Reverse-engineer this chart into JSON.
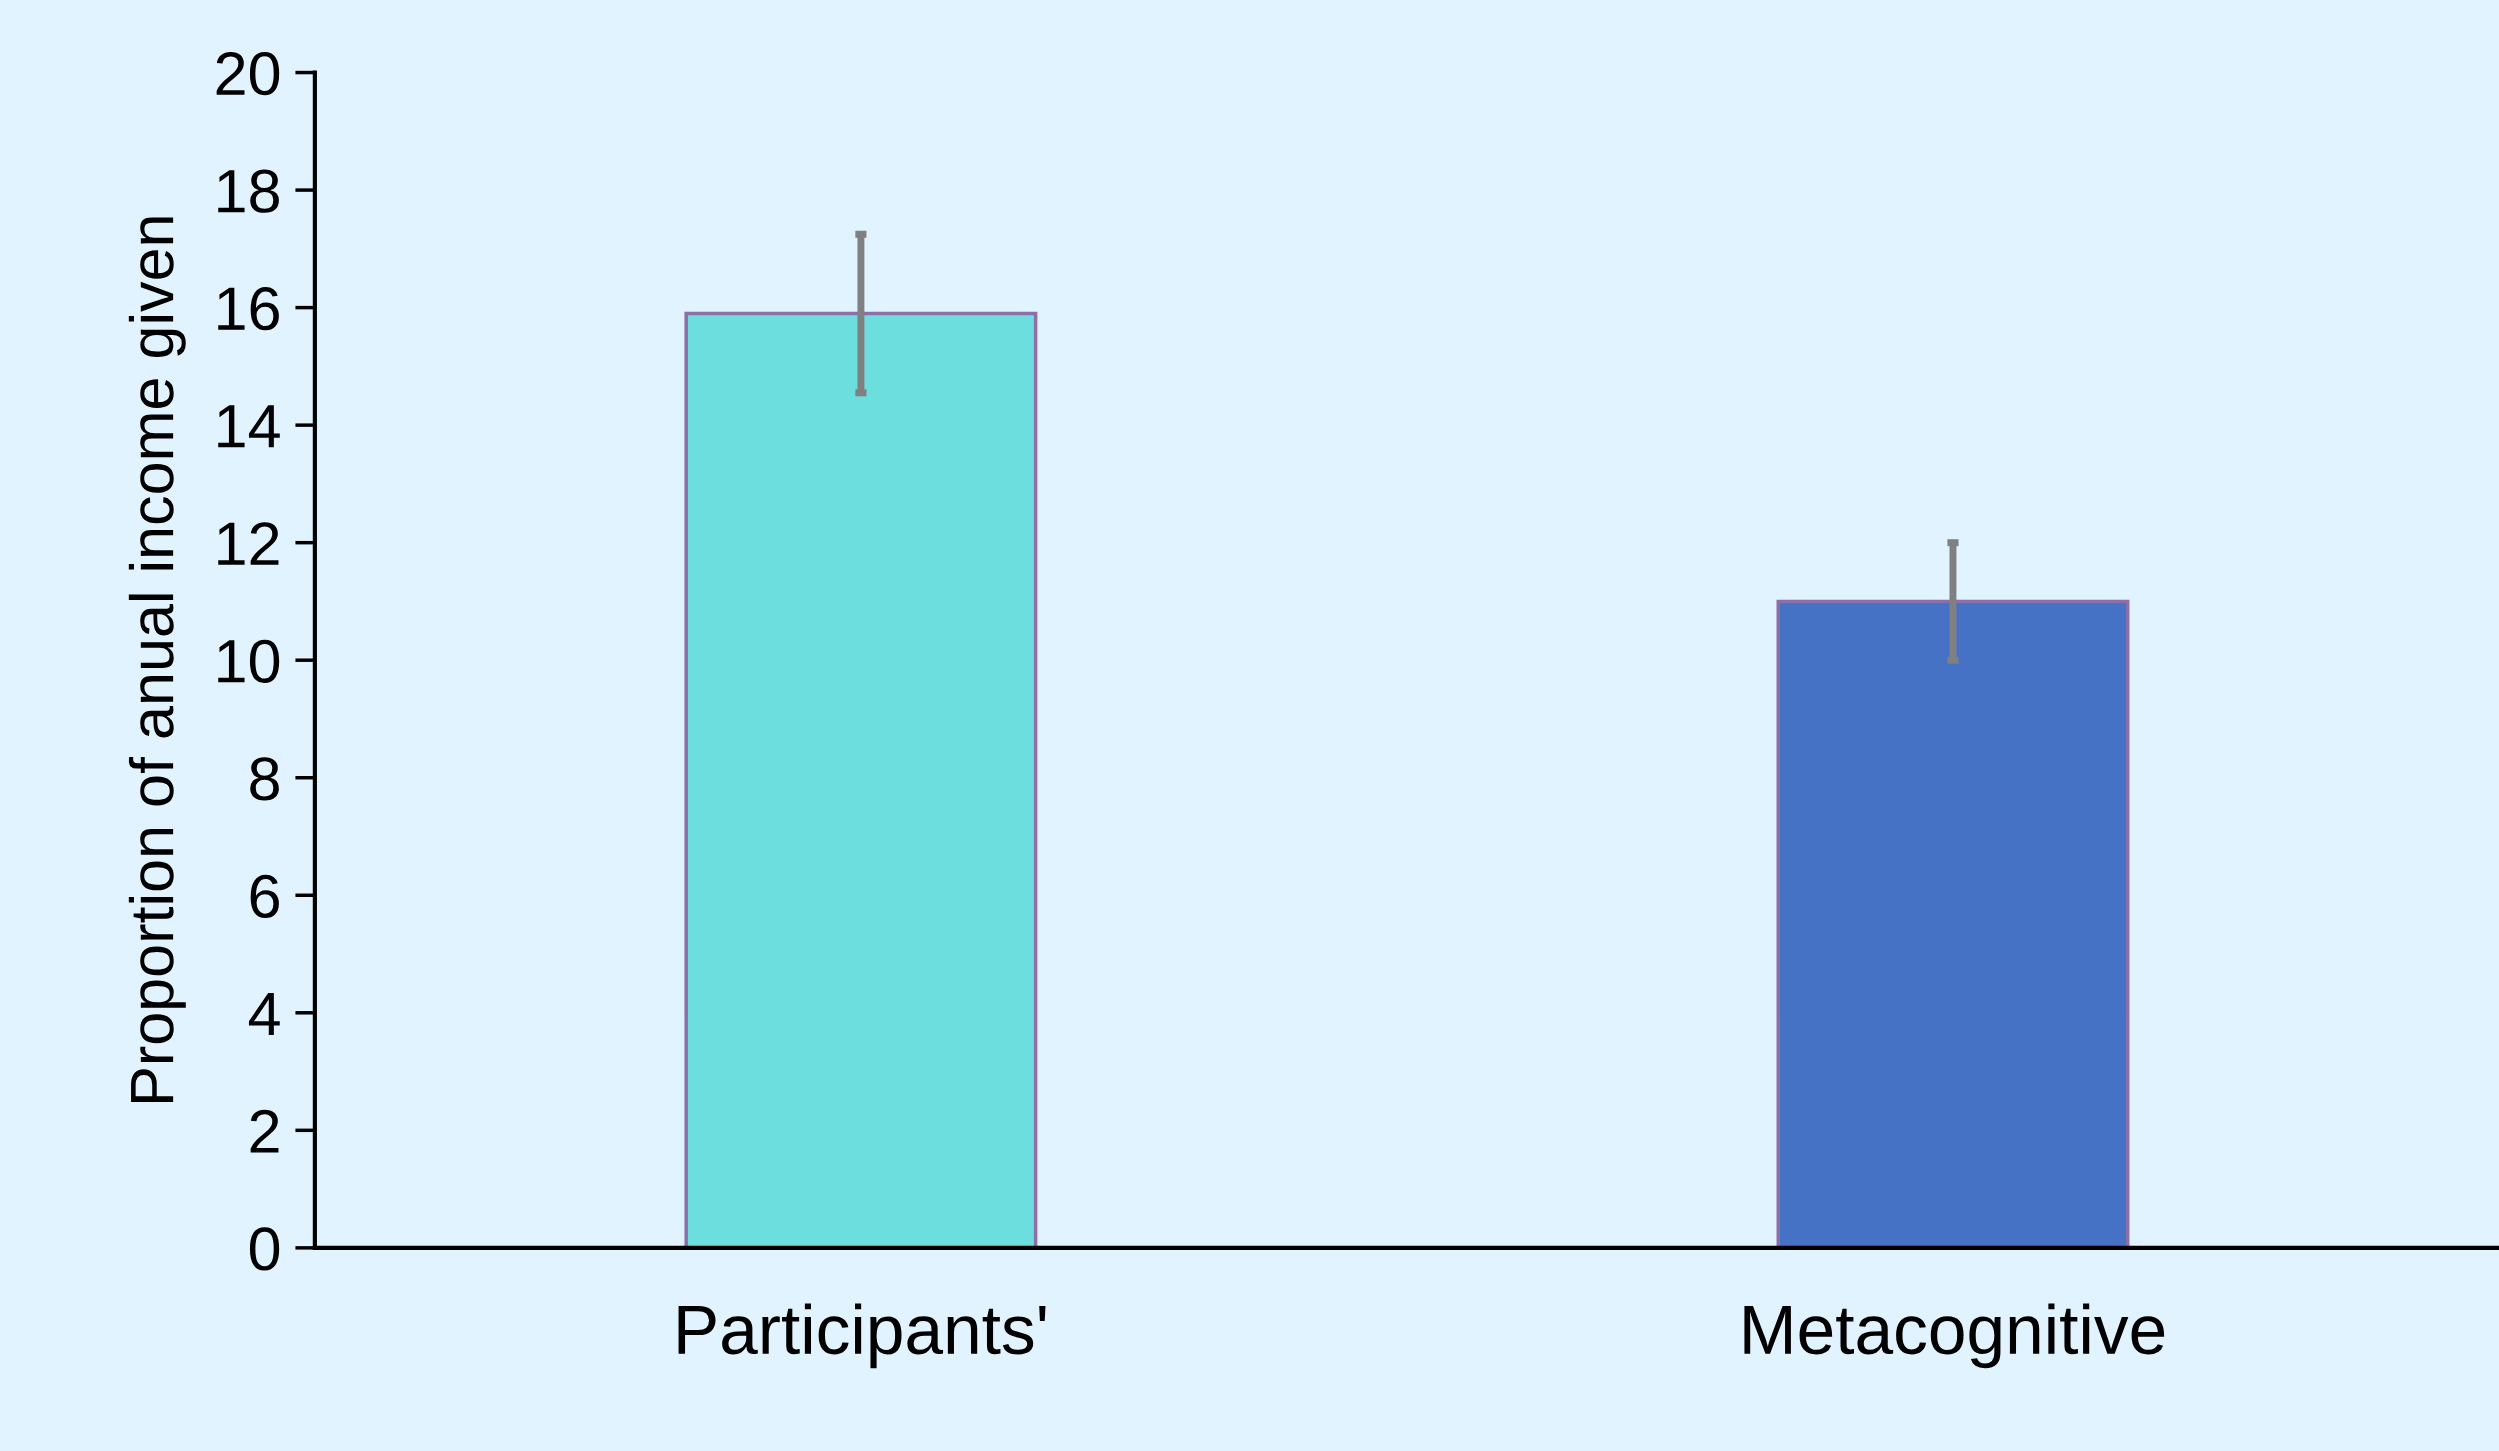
{
  "chart_data": {
    "type": "bar",
    "ylabel": "Proportion of anual income given",
    "categories": [
      "Participants'",
      "Metacognitive"
    ],
    "values": [
      15.9,
      11.0
    ],
    "colors": [
      "#6cdede",
      "#4672c6"
    ],
    "errors": [
      1.35,
      1.0
    ],
    "ylim": [
      0,
      20
    ],
    "yticks": [
      0,
      2,
      4,
      6,
      8,
      10,
      12,
      14,
      16,
      18,
      20
    ],
    "grid": false,
    "legend": false
  }
}
